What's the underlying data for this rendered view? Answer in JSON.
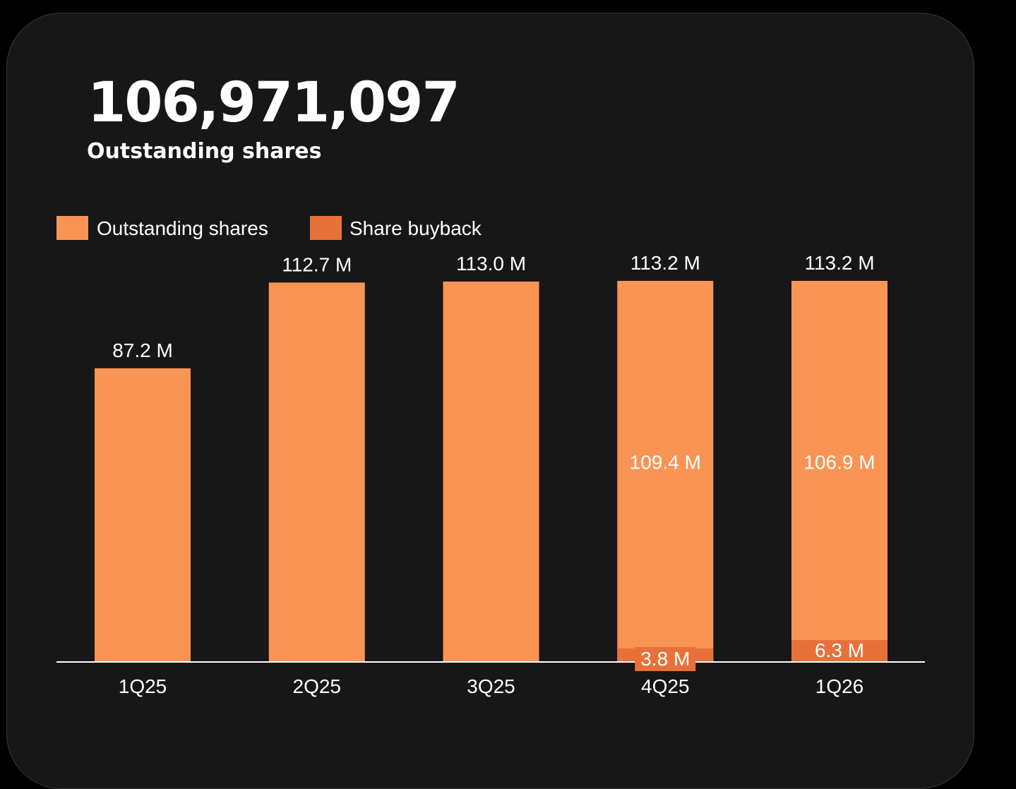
{
  "header": {
    "value": "106,971,097",
    "caption": "Outstanding shares"
  },
  "colors": {
    "background": "#000000",
    "card": "#171717",
    "outstanding": "#F99455",
    "buyback": "#E8713A",
    "text": "#FFFFFF",
    "axis": "#FFFFFF"
  },
  "chart_data": {
    "type": "bar",
    "stacked": true,
    "categories": [
      "1Q25",
      "2Q25",
      "3Q25",
      "4Q25",
      "1Q26"
    ],
    "series": [
      {
        "name": "Outstanding shares",
        "values": [
          87.2,
          112.7,
          113.0,
          109.4,
          106.9
        ]
      },
      {
        "name": "Share buyback",
        "values": [
          0,
          0,
          0,
          3.8,
          6.3
        ]
      }
    ],
    "totals": [
      87.2,
      112.7,
      113.0,
      113.2,
      113.2
    ],
    "labels": {
      "totals": [
        "87.2 M",
        "112.7 M",
        "113.0 M",
        "113.2 M",
        "113.2 M"
      ],
      "outstanding_inner": [
        "",
        "",
        "",
        "109.4 M",
        "106.9 M"
      ],
      "buyback": [
        "",
        "",
        "",
        "3.8 M",
        "6.3 M"
      ]
    },
    "legend": [
      "Outstanding shares",
      "Share buyback"
    ],
    "legend_position": "top-left",
    "unit": "M",
    "ylim": [
      0,
      113.2
    ],
    "grid": false
  }
}
